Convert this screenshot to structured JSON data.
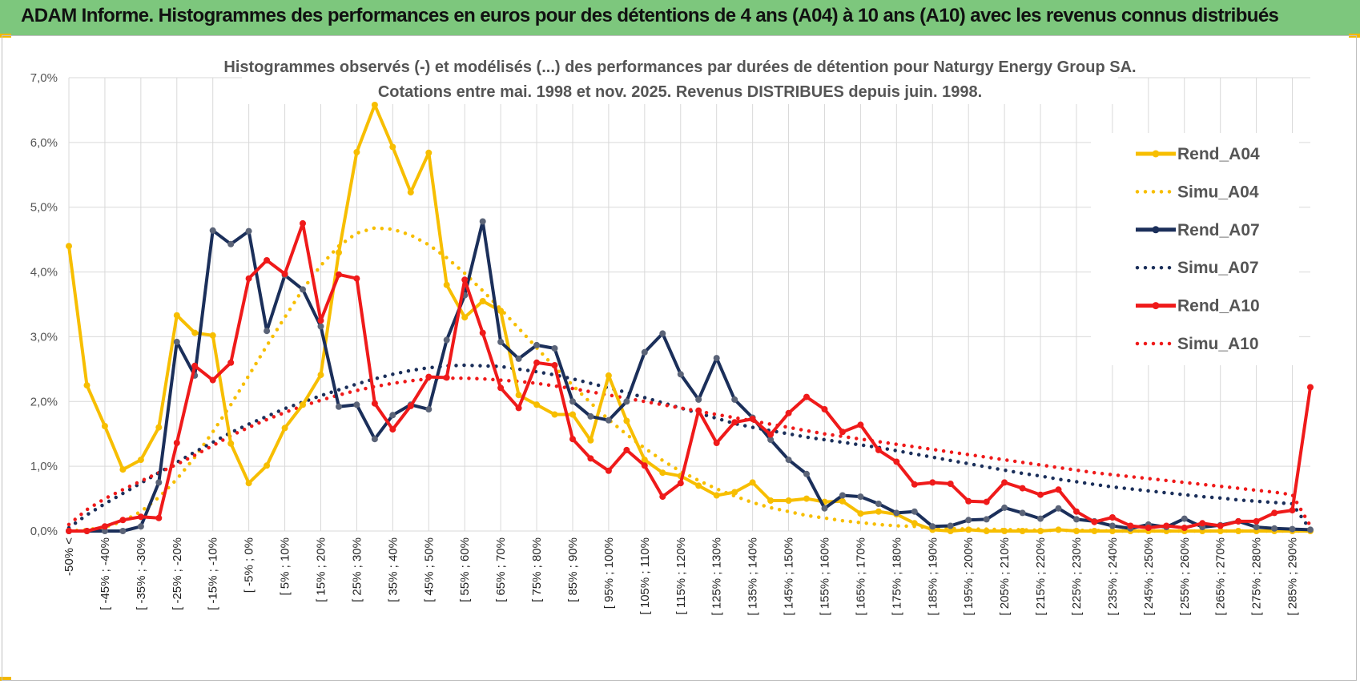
{
  "header": {
    "title": "ADAM Informe. Histogrammes des performances en euros pour des détentions de 4 ans (A04) à 10 ans (A10) avec les revenus connus distribués"
  },
  "colors": {
    "banner": "#7dc77d",
    "a04": "#f7be00",
    "a07": "#1b2f5a",
    "a10": "#ef1a1a",
    "grid": "#d9d9d9"
  },
  "chart_data": {
    "type": "line",
    "title_lines": [
      "Histogrammes observés (-) et modélisés (...) des performances par durées de détention pour Naturgy Energy Group SA.",
      "Cotations entre mai. 1998 et nov. 2025.  Revenus DISTRIBUES depuis juin. 1998."
    ],
    "y_ticks": [
      "0,0%",
      "1,0%",
      "2,0%",
      "3,0%",
      "4,0%",
      "5,0%",
      "6,0%",
      "7,0%"
    ],
    "ylim": [
      0,
      7
    ],
    "x_labels": [
      "-50% <",
      "[ -45% ; -40%",
      "[ -35% ; -30%",
      "[ -25% ; -20%",
      "[ -15% ; -10%",
      "[ -5% ; 0%",
      "[ 5% ; 10%",
      "[ 15% ; 20%",
      "[ 25% ; 30%",
      "[ 35% ; 40%",
      "[ 45% ; 50%",
      "[ 55% ; 60%",
      "[ 65% ; 70%",
      "[ 75% ; 80%",
      "[ 85% ; 90%",
      "[ 95% ; 100%",
      "[ 105% ; 110%",
      "[ 115% ; 120%",
      "[ 125% ; 130%",
      "[ 135% ; 140%",
      "[ 145% ; 150%",
      "[ 155% ; 160%",
      "[ 165% ; 170%",
      "[ 175% ; 180%",
      "[ 185% ; 190%",
      "[ 195% ; 200%",
      "[ 205% ; 210%",
      "[ 215% ; 220%",
      "[ 225% ; 230%",
      "[ 235% ; 240%",
      "[ 245% ; 250%",
      "[ 255% ; 260%",
      "[ 265% ; 270%",
      "[ 275% ; 280%",
      "[ 285% ; 290%"
    ],
    "n_points": 70,
    "series": [
      {
        "name": "Rend_A04",
        "style": "solid",
        "color": "#f7be00",
        "values": [
          4.4,
          2.25,
          1.62,
          0.95,
          1.1,
          1.6,
          3.33,
          3.06,
          3.02,
          1.35,
          0.74,
          1.01,
          1.59,
          1.95,
          2.41,
          4.3,
          5.85,
          6.58,
          5.93,
          5.23,
          5.84,
          3.8,
          3.3,
          3.55,
          3.4,
          2.1,
          1.95,
          1.8,
          1.8,
          1.4,
          2.4,
          1.7,
          1.1,
          0.9,
          0.85,
          0.7,
          0.55,
          0.6,
          0.75,
          0.47,
          0.47,
          0.5,
          0.45,
          0.46,
          0.27,
          0.3,
          0.26,
          0.12,
          0.02,
          0,
          0.02,
          0,
          0,
          0,
          0,
          0.02,
          0,
          0,
          0,
          0,
          0,
          0,
          0,
          0,
          0,
          0,
          0,
          0,
          0,
          0
        ]
      },
      {
        "name": "Simu_A04",
        "style": "dotted",
        "color": "#f7be00",
        "values": [
          0,
          0.02,
          0.06,
          0.15,
          0.3,
          0.52,
          0.8,
          1.14,
          1.53,
          1.95,
          2.4,
          2.86,
          3.3,
          3.73,
          4.1,
          4.4,
          4.6,
          4.68,
          4.66,
          4.57,
          4.42,
          4.22,
          3.98,
          3.71,
          3.43,
          3.13,
          2.83,
          2.53,
          2.25,
          1.98,
          1.72,
          1.49,
          1.28,
          1.09,
          0.92,
          0.78,
          0.65,
          0.54,
          0.44,
          0.36,
          0.3,
          0.24,
          0.2,
          0.16,
          0.13,
          0.1,
          0.08,
          0.07,
          0.05,
          0.04,
          0.03,
          0.03,
          0.02,
          0.02,
          0.01,
          0.01,
          0.01,
          0.01,
          0,
          0,
          0,
          0,
          0,
          0,
          0,
          0,
          0,
          0,
          0,
          0
        ]
      },
      {
        "name": "Rend_A07",
        "style": "solid",
        "color": "#1b2f5a",
        "values": [
          0,
          0,
          0,
          0,
          0.07,
          0.75,
          2.92,
          2.4,
          4.64,
          4.43,
          4.63,
          3.09,
          3.95,
          3.73,
          3.16,
          1.92,
          1.95,
          1.42,
          1.79,
          1.95,
          1.88,
          2.95,
          3.64,
          4.78,
          2.92,
          2.66,
          2.87,
          2.82,
          2.0,
          1.77,
          1.71,
          2.0,
          2.76,
          3.05,
          2.42,
          2.03,
          2.67,
          2.03,
          1.75,
          1.41,
          1.1,
          0.88,
          0.35,
          0.55,
          0.53,
          0.42,
          0.28,
          0.3,
          0.07,
          0.08,
          0.17,
          0.18,
          0.36,
          0.28,
          0.19,
          0.35,
          0.18,
          0.15,
          0.08,
          0.04,
          0.1,
          0.06,
          0.19,
          0.06,
          0.09,
          0.15,
          0.06,
          0.04,
          0.03,
          0.02
        ]
      },
      {
        "name": "Simu_A07",
        "style": "dotted",
        "color": "#1b2f5a",
        "values": [
          0.05,
          0.25,
          0.42,
          0.58,
          0.74,
          0.9,
          1.06,
          1.22,
          1.37,
          1.52,
          1.65,
          1.77,
          1.89,
          1.99,
          2.09,
          2.18,
          2.27,
          2.35,
          2.42,
          2.48,
          2.52,
          2.55,
          2.56,
          2.55,
          2.54,
          2.5,
          2.46,
          2.41,
          2.35,
          2.28,
          2.21,
          2.14,
          2.06,
          1.98,
          1.9,
          1.82,
          1.74,
          1.66,
          1.6,
          1.55,
          1.5,
          1.45,
          1.41,
          1.37,
          1.33,
          1.29,
          1.24,
          1.19,
          1.14,
          1.09,
          1.04,
          0.99,
          0.94,
          0.89,
          0.85,
          0.8,
          0.76,
          0.72,
          0.68,
          0.65,
          0.62,
          0.59,
          0.56,
          0.53,
          0.51,
          0.48,
          0.46,
          0.44,
          0.42,
          0.02
        ]
      },
      {
        "name": "Rend_A10",
        "style": "solid",
        "color": "#ef1a1a",
        "values": [
          0,
          0,
          0.07,
          0.17,
          0.22,
          0.2,
          1.36,
          2.55,
          2.33,
          2.6,
          3.9,
          4.18,
          3.97,
          4.75,
          3.25,
          3.96,
          3.9,
          1.97,
          1.57,
          1.93,
          2.38,
          2.37,
          3.88,
          3.06,
          2.21,
          1.9,
          2.6,
          2.56,
          1.42,
          1.12,
          0.93,
          1.25,
          1.01,
          0.53,
          0.74,
          1.86,
          1.36,
          1.68,
          1.73,
          1.49,
          1.82,
          2.07,
          1.88,
          1.53,
          1.64,
          1.25,
          1.07,
          0.72,
          0.75,
          0.73,
          0.46,
          0.45,
          0.75,
          0.66,
          0.56,
          0.64,
          0.3,
          0.14,
          0.21,
          0.08,
          0.05,
          0.08,
          0.05,
          0.12,
          0.08,
          0.15,
          0.15,
          0.28,
          0.32,
          2.22
        ]
      },
      {
        "name": "Simu_A10",
        "style": "dotted",
        "color": "#ef1a1a",
        "values": [
          0.1,
          0.33,
          0.5,
          0.64,
          0.77,
          0.9,
          1.03,
          1.17,
          1.32,
          1.47,
          1.6,
          1.72,
          1.83,
          1.93,
          2.02,
          2.1,
          2.17,
          2.23,
          2.28,
          2.32,
          2.35,
          2.36,
          2.36,
          2.35,
          2.33,
          2.31,
          2.28,
          2.24,
          2.2,
          2.15,
          2.1,
          2.05,
          2.0,
          1.95,
          1.9,
          1.85,
          1.8,
          1.75,
          1.7,
          1.65,
          1.6,
          1.55,
          1.5,
          1.46,
          1.42,
          1.38,
          1.34,
          1.3,
          1.26,
          1.22,
          1.18,
          1.14,
          1.1,
          1.06,
          1.02,
          0.98,
          0.94,
          0.9,
          0.87,
          0.84,
          0.81,
          0.78,
          0.75,
          0.72,
          0.69,
          0.66,
          0.63,
          0.6,
          0.56,
          0.08
        ]
      }
    ],
    "legend": [
      "Rend_A04",
      "Simu_A04",
      "Rend_A07",
      "Simu_A07",
      "Rend_A10",
      "Simu_A10"
    ],
    "legend_position": "right"
  }
}
